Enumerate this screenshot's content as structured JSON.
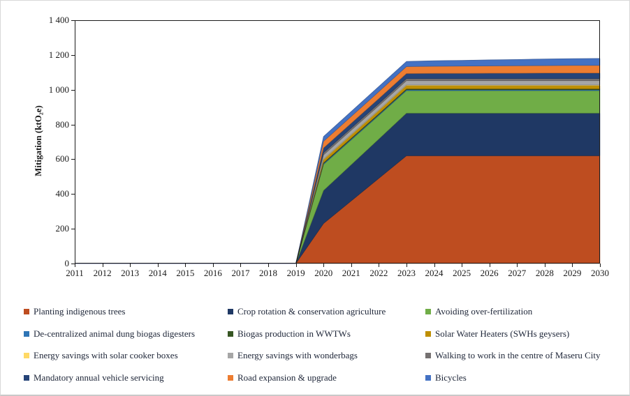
{
  "chart_data": {
    "type": "area",
    "stacked": true,
    "title": "",
    "xlabel": "",
    "ylabel": "Mitigation (ktO₂e)",
    "ylim": [
      0,
      1400
    ],
    "grid": false,
    "legend_position": "bottom",
    "x": [
      2011,
      2012,
      2013,
      2014,
      2015,
      2016,
      2017,
      2018,
      2019,
      2020,
      2021,
      2022,
      2023,
      2024,
      2025,
      2026,
      2027,
      2028,
      2029,
      2030
    ],
    "x_tick_labels": [
      "2011",
      "2012",
      "2013",
      "2014",
      "2015",
      "2016",
      "2017",
      "2018",
      "2019",
      "2020",
      "2021",
      "2022",
      "2023",
      "2024",
      "2025",
      "2026",
      "2027",
      "2028",
      "2029",
      "2030"
    ],
    "y_tick_values": [
      0,
      200,
      400,
      600,
      800,
      1000,
      1200,
      1400
    ],
    "y_tick_labels": [
      "0",
      "200",
      "400",
      "600",
      "800",
      "1 000",
      "1 200",
      "1 400"
    ],
    "series": [
      {
        "name": "Planting indigenous trees",
        "color": "#BE4D20",
        "values": [
          0,
          0,
          0,
          0,
          0,
          0,
          0,
          0,
          0,
          230,
          360,
          490,
          620,
          620,
          620,
          620,
          620,
          620,
          620,
          620
        ]
      },
      {
        "name": "Crop rotation & conservation agriculture",
        "color": "#1F3864",
        "values": [
          0,
          0,
          0,
          0,
          0,
          0,
          0,
          0,
          0,
          190,
          208,
          226,
          245,
          245,
          245,
          245,
          245,
          245,
          245,
          245
        ]
      },
      {
        "name": "Avoiding over-fertilization",
        "color": "#70AD47",
        "values": [
          0,
          0,
          0,
          0,
          0,
          0,
          0,
          0,
          0,
          150,
          143,
          136,
          130,
          130,
          130,
          130,
          130,
          130,
          130,
          130
        ]
      },
      {
        "name": "De-centralized animal dung biogas digesters",
        "color": "#2E75B6",
        "values": [
          0,
          0,
          0,
          0,
          0,
          0,
          0,
          0,
          0,
          5,
          5,
          5,
          5,
          5,
          5,
          5,
          5,
          5,
          5,
          5
        ]
      },
      {
        "name": "Biogas production in WWTWs",
        "color": "#375623",
        "values": [
          0,
          0,
          0,
          0,
          0,
          0,
          0,
          0,
          0,
          5,
          5,
          5,
          5,
          5,
          5,
          5,
          5,
          5,
          5,
          5
        ]
      },
      {
        "name": "Solar Water Heaters (SWHs geysers)",
        "color": "#BF8F00",
        "values": [
          0,
          0,
          0,
          0,
          0,
          0,
          0,
          0,
          0,
          16,
          17,
          17,
          18,
          18,
          18,
          18,
          18,
          18,
          18,
          18
        ]
      },
      {
        "name": "Energy savings with solar cooker boxes",
        "color": "#FFD966",
        "values": [
          0,
          0,
          0,
          0,
          0,
          0,
          0,
          0,
          0,
          4,
          4,
          4,
          4,
          4,
          4,
          4,
          4,
          4,
          4,
          4
        ]
      },
      {
        "name": "Energy savings with wonderbags",
        "color": "#A6A6A6",
        "values": [
          0,
          0,
          0,
          0,
          0,
          0,
          0,
          0,
          0,
          25,
          25,
          25,
          25,
          25,
          25,
          25,
          25,
          25,
          25,
          25
        ]
      },
      {
        "name": "Walking to work in the centre of Maseru City",
        "color": "#757171",
        "values": [
          0,
          0,
          0,
          0,
          0,
          0,
          0,
          0,
          0,
          12,
          12,
          12,
          12,
          12,
          12,
          12,
          12,
          12,
          12,
          12
        ]
      },
      {
        "name": "Mandatory annual vehicle servicing",
        "color": "#264478",
        "values": [
          0,
          0,
          0,
          0,
          0,
          0,
          0,
          0,
          0,
          28,
          28,
          29,
          29,
          30,
          30,
          31,
          31,
          32,
          32,
          32
        ]
      },
      {
        "name": "Road expansion & upgrade",
        "color": "#ED7D31",
        "values": [
          0,
          0,
          0,
          0,
          0,
          0,
          0,
          0,
          0,
          38,
          39,
          40,
          40,
          41,
          42,
          42,
          43,
          43,
          44,
          44
        ]
      },
      {
        "name": "Bicycles",
        "color": "#4472C4",
        "values": [
          0,
          0,
          0,
          0,
          0,
          0,
          0,
          0,
          0,
          28,
          29,
          30,
          30,
          32,
          33,
          35,
          36,
          38,
          39,
          40
        ]
      }
    ]
  }
}
